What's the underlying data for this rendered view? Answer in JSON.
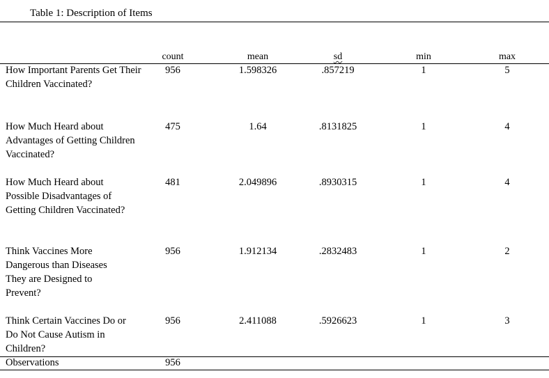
{
  "caption": "Table 1: Description of Items",
  "columns": {
    "count": "count",
    "mean": "mean",
    "sd": "sd",
    "min": "min",
    "max": "max"
  },
  "rows": [
    {
      "label": "How Important Parents Get Their Children Vaccinated?",
      "count": "956",
      "mean": "1.598326",
      "sd": ".857219",
      "min": "1",
      "max": "5"
    },
    {
      "label": "How Much Heard about Advantages of Getting Children Vaccinated?",
      "count": "475",
      "mean": "1.64",
      "sd": ".8131825",
      "min": "1",
      "max": "4"
    },
    {
      "label": "How Much Heard about Possible Disadvantages of Getting Children Vaccinated?",
      "count": "481",
      "mean": "2.049896",
      "sd": ".8930315",
      "min": "1",
      "max": "4"
    },
    {
      "label": "Think Vaccines More Dangerous than Diseases They are Designed to Prevent?",
      "count": "956",
      "mean": "1.912134",
      "sd": ".2832483",
      "min": "1",
      "max": "2"
    },
    {
      "label": "Think Certain Vaccines Do or Do Not Cause Autism in Children?",
      "count": "956",
      "mean": "2.411088",
      "sd": ".5926623",
      "min": "1",
      "max": "3"
    }
  ],
  "observations": {
    "label": "Observations",
    "count": "956"
  }
}
